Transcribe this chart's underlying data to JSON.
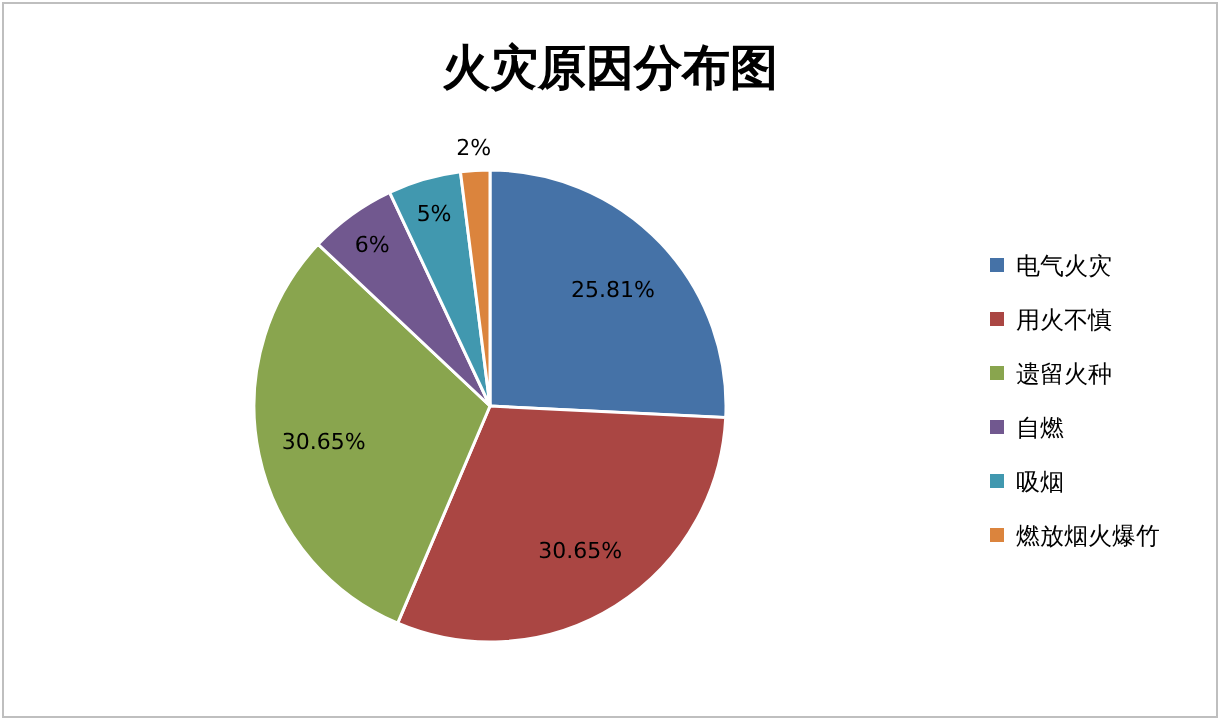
{
  "chart_data": {
    "type": "pie",
    "title": "火灾原因分布图",
    "categories": [
      "电气火灾",
      "用火不慎",
      "遗留火种",
      "自燃",
      "吸烟",
      "燃放烟火爆竹"
    ],
    "values": [
      25.81,
      30.65,
      30.65,
      6,
      5,
      2
    ],
    "colors": [
      "#4572a7",
      "#aa4643",
      "#89a54e",
      "#71588f",
      "#4198af",
      "#db843d"
    ],
    "value_labels": [
      "25.81%",
      "30.65%",
      "30.65%",
      "6%",
      "5%",
      "2%"
    ],
    "legend": "right"
  }
}
